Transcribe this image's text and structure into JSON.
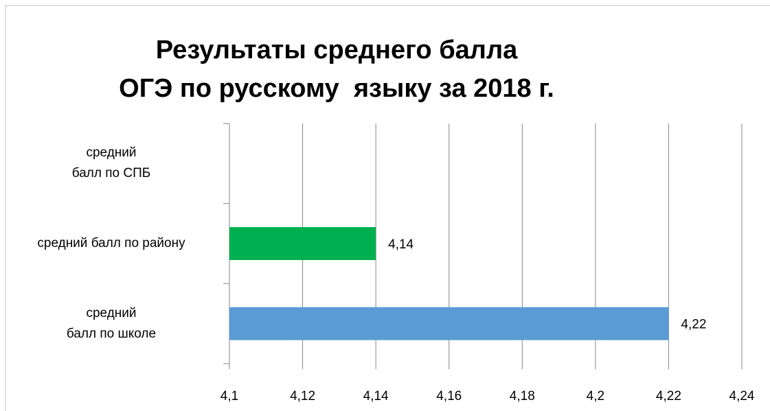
{
  "chart_data": {
    "type": "barh",
    "title": "Результаты среднего балла\nОГЭ по русскому  языку за 2018 г.",
    "categories": [
      "средний\nбалл по СПБ",
      "средний балл по району",
      "средний\nбалл по школе"
    ],
    "values": [
      null,
      4.14,
      4.22
    ],
    "value_labels": [
      null,
      "4,14",
      "4,22"
    ],
    "colors": [
      null,
      "#00b050",
      "#5b9bd5"
    ],
    "xlim": [
      4.1,
      4.24
    ],
    "xticks": [
      {
        "value": 4.1,
        "label": "4,1"
      },
      {
        "value": 4.12,
        "label": "4,12"
      },
      {
        "value": 4.14,
        "label": "4,14"
      },
      {
        "value": 4.16,
        "label": "4,16"
      },
      {
        "value": 4.18,
        "label": "4,18"
      },
      {
        "value": 4.2,
        "label": "4,2"
      },
      {
        "value": 4.22,
        "label": "4,22"
      },
      {
        "value": 4.24,
        "label": "4,24"
      }
    ],
    "grid": true
  }
}
